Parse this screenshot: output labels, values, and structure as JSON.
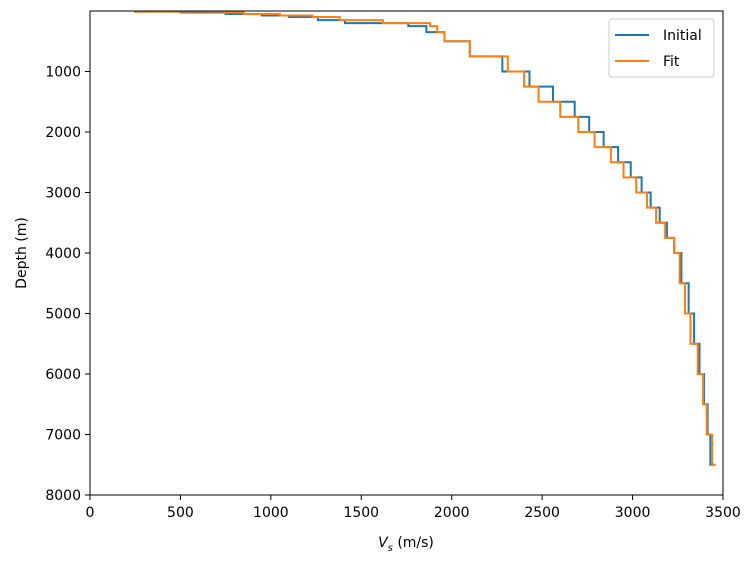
{
  "chart_data": {
    "type": "line",
    "style": "step",
    "xlabel_symbol": "V",
    "xlabel_subscript": "s",
    "xlabel_unit": " (m/s)",
    "ylabel": "Depth (m)",
    "xlim": [
      0,
      3500
    ],
    "ylim": [
      8000,
      0
    ],
    "y_inverted": true,
    "xticks": [
      0,
      500,
      1000,
      1500,
      2000,
      2500,
      3000,
      3500
    ],
    "yticks": [
      1000,
      2000,
      3000,
      4000,
      5000,
      6000,
      7000,
      8000
    ],
    "grid": false,
    "legend_position": "top-right",
    "series": [
      {
        "name": "Initial",
        "color": "#1f77b4",
        "vs": [
          250,
          500,
          750,
          950,
          1100,
          1260,
          1410,
          1760,
          1860,
          1960,
          2100,
          2280,
          2430,
          2560,
          2680,
          2760,
          2840,
          2920,
          2990,
          3050,
          3100,
          3150,
          3190,
          3230,
          3270,
          3310,
          3340,
          3370,
          3395,
          3415,
          3430,
          3450
        ],
        "depth": [
          0,
          10,
          25,
          50,
          75,
          100,
          150,
          200,
          250,
          350,
          500,
          750,
          1000,
          1250,
          1500,
          1750,
          2000,
          2250,
          2500,
          2750,
          3000,
          3250,
          3500,
          3750,
          4000,
          4500,
          5000,
          5500,
          6000,
          6500,
          7000,
          7500
        ]
      },
      {
        "name": "Fit",
        "color": "#ff7f0e",
        "vs": [
          250,
          750,
          850,
          1050,
          1230,
          1380,
          1620,
          1880,
          1920,
          1960,
          2100,
          2310,
          2400,
          2480,
          2600,
          2700,
          2790,
          2880,
          2950,
          3020,
          3080,
          3130,
          3180,
          3230,
          3260,
          3290,
          3320,
          3360,
          3390,
          3410,
          3440,
          3460
        ],
        "depth": [
          0,
          10,
          25,
          50,
          75,
          100,
          150,
          200,
          250,
          350,
          500,
          750,
          1000,
          1250,
          1500,
          1750,
          2000,
          2250,
          2500,
          2750,
          3000,
          3250,
          3500,
          3750,
          4000,
          4500,
          5000,
          5500,
          6000,
          6500,
          7000,
          7500
        ]
      }
    ]
  }
}
